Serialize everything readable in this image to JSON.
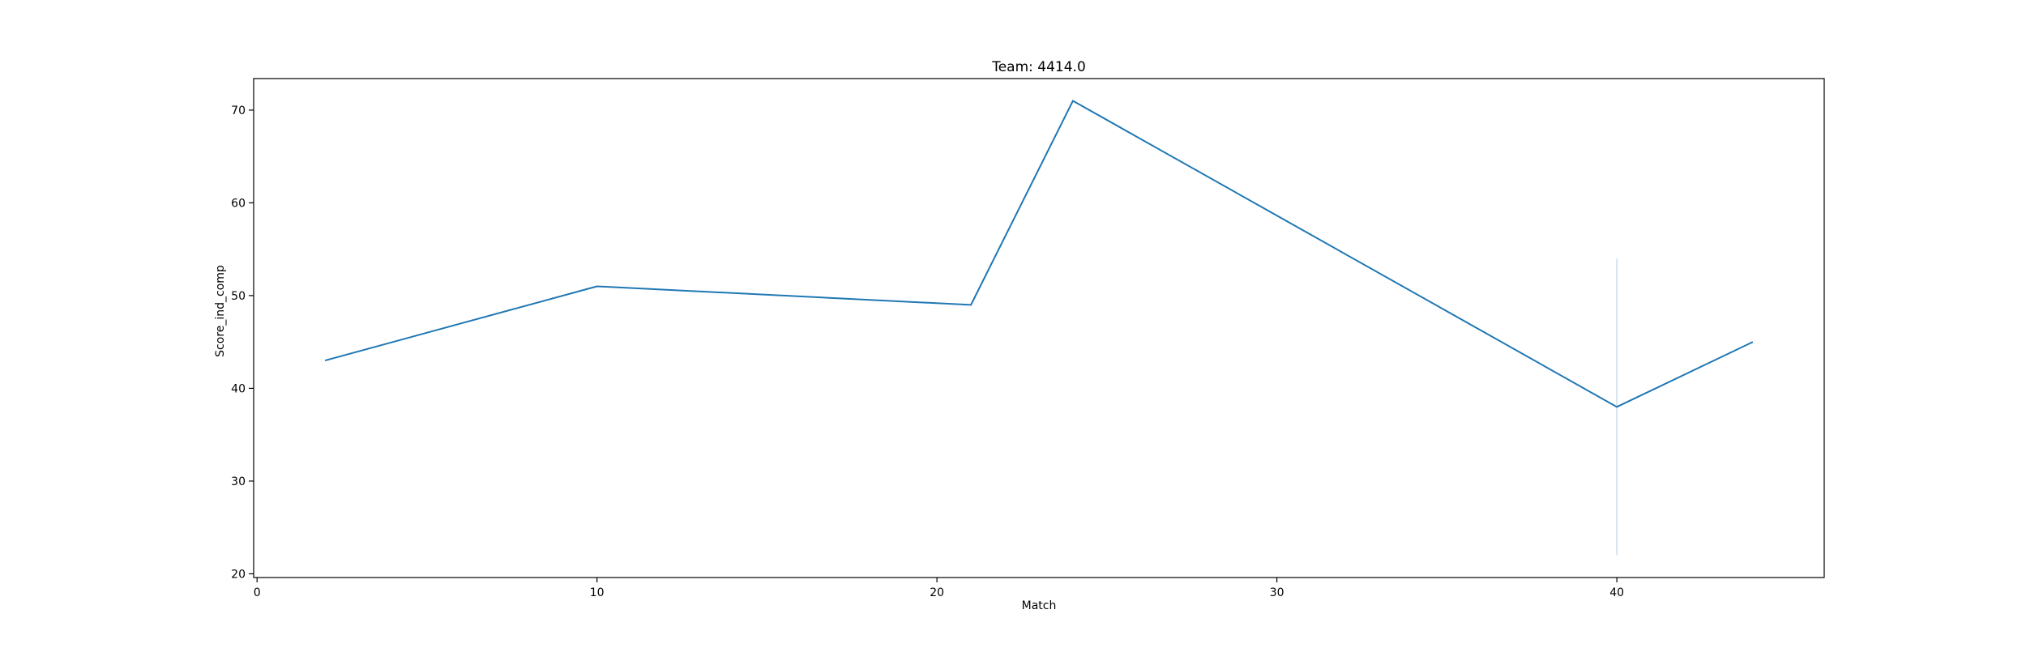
{
  "chart_data": {
    "type": "line",
    "title": "Team: 4414.0",
    "xlabel": "Match",
    "ylabel": "Score_ind_comp",
    "xlim": [
      -0.1,
      46.1
    ],
    "ylim": [
      19.6,
      73.4
    ],
    "xticks": [
      0,
      10,
      20,
      30,
      40
    ],
    "yticks": [
      20,
      30,
      40,
      50,
      60,
      70
    ],
    "grid": false,
    "legend": "none",
    "colors": {
      "line": "#1f77b4",
      "band": "#1f77b4"
    },
    "series": [
      {
        "x": [
          2,
          10,
          21,
          24,
          40,
          44
        ],
        "values": [
          43,
          51,
          49,
          71,
          38,
          45
        ]
      }
    ],
    "error_band": {
      "x": 40,
      "low": 22,
      "high": 54
    }
  }
}
